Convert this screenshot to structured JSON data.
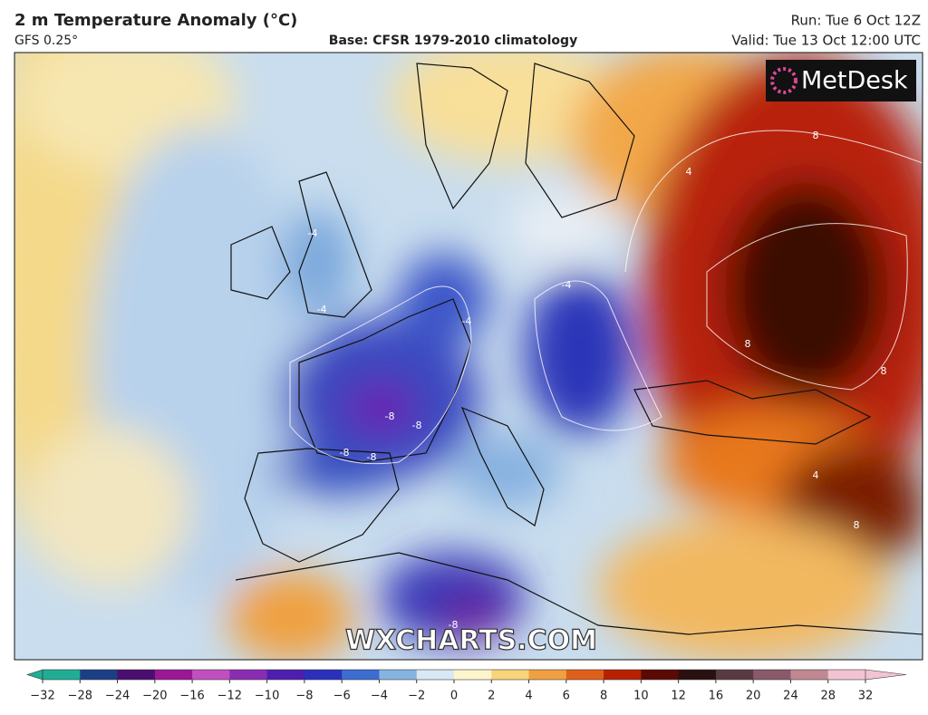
{
  "header": {
    "title": "2 m Temperature Anomaly (°C)",
    "model": "GFS 0.25°",
    "base": "Base: CFSR 1979-2010 climatology",
    "run": "Run: Tue 6 Oct 12Z",
    "valid": "Valid: Tue 13 Oct 12:00 UTC"
  },
  "map": {
    "logo": "MetDesk",
    "watermark": "WXCHARTS.COM",
    "contour_labels": [
      "-4",
      "-4",
      "-4",
      "-8",
      "-8",
      "-8",
      "-8",
      "-4",
      "4",
      "8",
      "8",
      "8",
      "4",
      "8",
      "-8"
    ]
  },
  "colorbar": {
    "ticks": [
      {
        "value": -32,
        "label": "−32"
      },
      {
        "value": -28,
        "label": "−28"
      },
      {
        "value": -24,
        "label": "−24"
      },
      {
        "value": -20,
        "label": "−20"
      },
      {
        "value": -16,
        "label": "−16"
      },
      {
        "value": -12,
        "label": "−12"
      },
      {
        "value": -10,
        "label": "−10"
      },
      {
        "value": -8,
        "label": "−8"
      },
      {
        "value": -6,
        "label": "−6"
      },
      {
        "value": -4,
        "label": "−4"
      },
      {
        "value": -2,
        "label": "−2"
      },
      0,
      2,
      4,
      6,
      8,
      10,
      12,
      16,
      20,
      24,
      28,
      32
    ],
    "colors": [
      "#1fae95",
      "#1b3f86",
      "#4a0d70",
      "#9b1796",
      "#c050c0",
      "#8a2cb2",
      "#4f1db0",
      "#2a30bc",
      "#3b6dd0",
      "#85b4e2",
      "#d8e8f4",
      "#fdf6cc",
      "#f8d47a",
      "#f0a040",
      "#e0601a",
      "#b82002",
      "#5a0a02",
      "#2a1010",
      "#5a3a42",
      "#8a5a6a",
      "#c08892",
      "#f2c4d2"
    ]
  }
}
